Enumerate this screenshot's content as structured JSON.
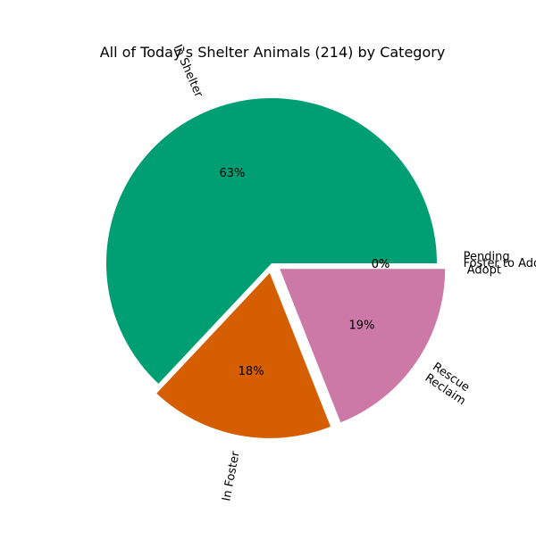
{
  "chart_data": {
    "type": "pie",
    "title": "All of Today's Shelter Animals (214) by Category",
    "slices": [
      {
        "label": "In Shelter",
        "value": 63,
        "pct_label": "63%",
        "color": "#009E73",
        "exploded": false
      },
      {
        "label": "In Foster",
        "value": 18,
        "pct_label": "18%",
        "color": "#D55E00",
        "exploded": true
      },
      {
        "label": "Rescue\nReclaim",
        "value": 19,
        "pct_label": "19%",
        "color": "#CC79A7",
        "exploded": true
      },
      {
        "label": "Pending\n Adopt",
        "value": 0,
        "pct_label": "0%",
        "color": "#E69F00",
        "exploded": true
      },
      {
        "label": "Foster to Adopt",
        "value": 0,
        "pct_label": "0%",
        "color": "#56B4E9",
        "exploded": true
      }
    ],
    "legend": "none",
    "grid": false
  }
}
